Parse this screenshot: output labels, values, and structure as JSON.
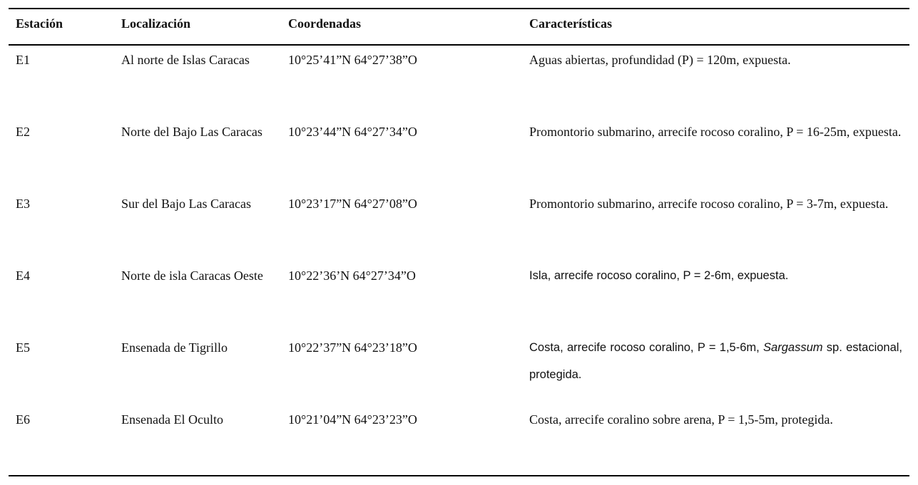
{
  "table": {
    "headers": [
      "Estación",
      "Localización",
      "Coordenadas",
      "Características"
    ],
    "rows": [
      [
        "E1",
        "Al norte de Islas Caracas",
        "10°25’41”N 64°27’38”O",
        "Aguas abiertas, profundidad (P) = 120m, expuesta."
      ],
      [
        "E2",
        "Norte del Bajo Las Caracas",
        "10°23’44”N 64°27’34”O",
        "Promontorio submarino, arrecife rocoso coralino, P = 16-25m, expuesta."
      ],
      [
        "E3",
        "Sur del Bajo Las Caracas",
        "10°23’17”N 64°27’08”O",
        "Promontorio submarino, arrecife rocoso coralino, P = 3-7m, expuesta."
      ],
      [
        "E4",
        "Norte de isla Caracas Oeste",
        "10°22’36’N 64°27’34”O",
        "Isla, arrecife rocoso coralino, P = 2-6m, expuesta."
      ],
      [
        "E5",
        "Ensenada de Tigrillo",
        "10°22’37”N 64°23’18”O",
        [
          "Costa, arrecife rocoso coralino, P = 1,5-6m, ",
          "Sargassum",
          " sp. estacional, protegida."
        ]
      ],
      [
        "E6",
        "Ensenada El Oculto",
        "10°21’04”N 64°23’23”O",
        "Costa, arrecife coralino sobre arena, P = 1,5-5m, protegida."
      ]
    ]
  }
}
